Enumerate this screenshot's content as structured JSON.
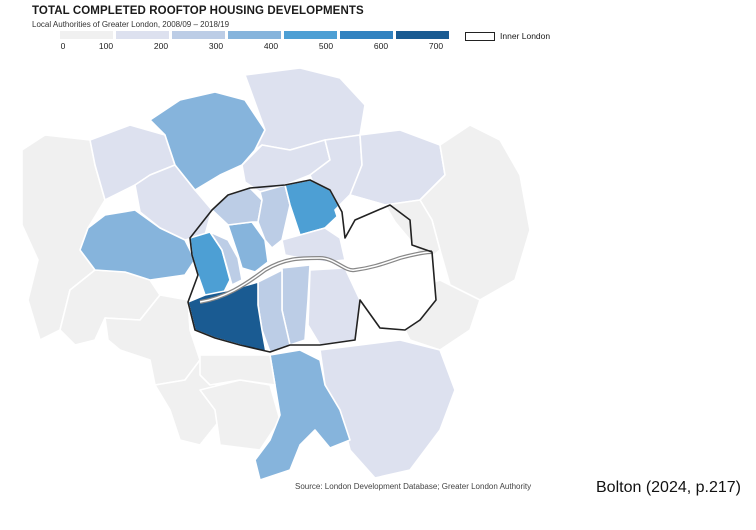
{
  "map": {
    "title": "TOTAL COMPLETED ROOFTOP HOUSING DEVELOPMENTS",
    "subtitle": "Local Authorities of Greater London, 2008/09 – 2018/19",
    "legend": {
      "bins": [
        {
          "range": "0–100",
          "color": "#f0f0f0"
        },
        {
          "range": "100–200",
          "color": "#dde1ef"
        },
        {
          "range": "200–300",
          "color": "#bccde6"
        },
        {
          "range": "300–400",
          "color": "#86b4dc"
        },
        {
          "range": "400–500",
          "color": "#4d9fd4"
        },
        {
          "range": "500–600",
          "color": "#3182c0"
        },
        {
          "range": "600–700",
          "color": "#1a5b92"
        }
      ],
      "ticks": [
        "0",
        "100",
        "200",
        "300",
        "400",
        "500",
        "600",
        "700"
      ],
      "inner_london_label": "Inner London"
    },
    "source": "Source: London Development Database; Greater London Authority",
    "citation": "Bolton (2024, p.217)",
    "colors": {
      "bin_0_100": "#f0f0f0",
      "bin_100_200": "#dde1ef",
      "bin_200_300": "#bccde6",
      "bin_300_400": "#86b4dc",
      "bin_400_500": "#4d9fd4",
      "bin_600_700": "#1a5b92",
      "inner_london_outline": "#222222",
      "river_thames": "#888888"
    }
  }
}
